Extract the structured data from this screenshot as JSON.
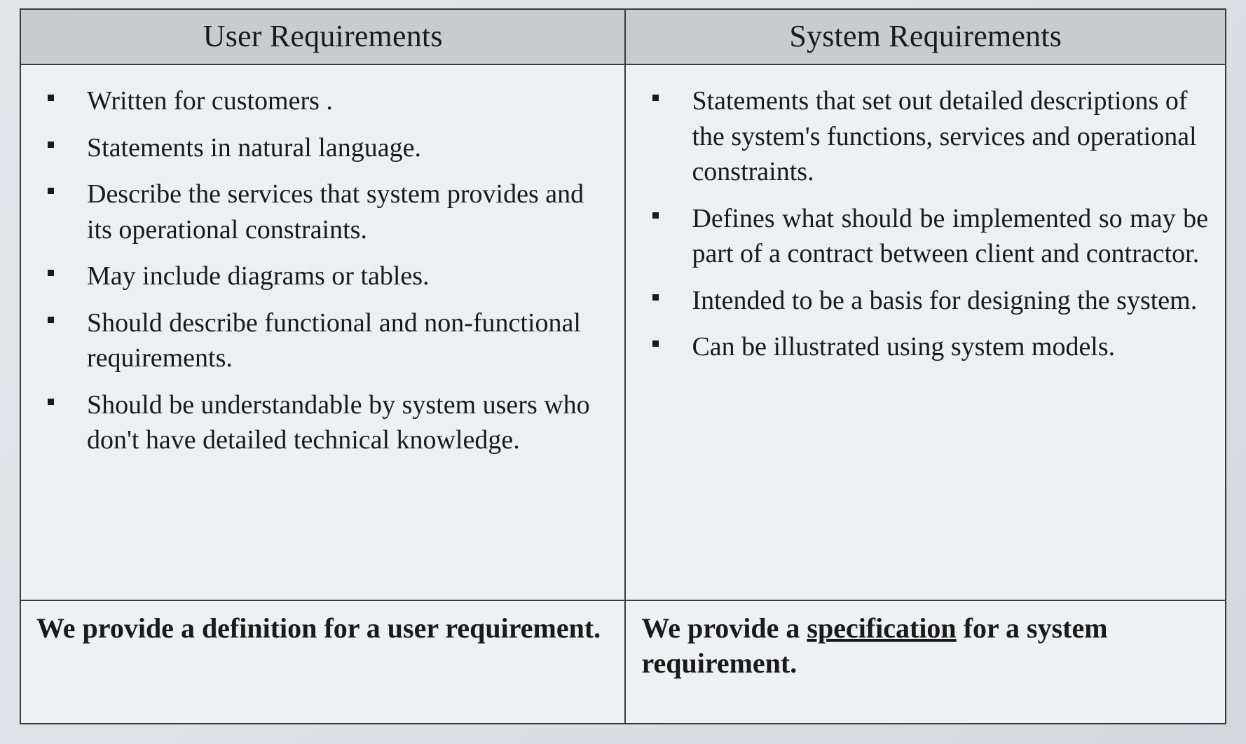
{
  "table": {
    "border_color": "#3a3a3a",
    "header_bg": "#c9cbce",
    "body_bg": "#edf0f3",
    "page_bg": "#dde1e5",
    "font_family": "Times New Roman",
    "header_fontsize_pt": 33,
    "body_fontsize_pt": 29,
    "footer_fontsize_pt": 30,
    "columns": [
      {
        "header": "User Requirements"
      },
      {
        "header": "System Requirements"
      }
    ],
    "left": {
      "items": [
        "Written for customers .",
        "Statements in natural language.",
        "Describe the services that system provides and its operational constraints.",
        "May include diagrams or tables.",
        "Should describe functional and non-functional requirements.",
        "Should be understandable by system users who don't have detailed technical knowledge."
      ],
      "footer_pre": "We provide a definition for a user requirement."
    },
    "right": {
      "items": [
        "Statements that set out detailed descriptions of the system's functions, services and operational constraints.",
        "Defines what should be implemented so may be part of a contract between client and contractor.",
        "Intended to be a basis for designing the system.",
        "Can be illustrated using system models."
      ],
      "justify_indices": [
        1
      ],
      "footer_pre": "We provide a ",
      "footer_underlined": "specification",
      "footer_post": " for a system requirement."
    }
  }
}
